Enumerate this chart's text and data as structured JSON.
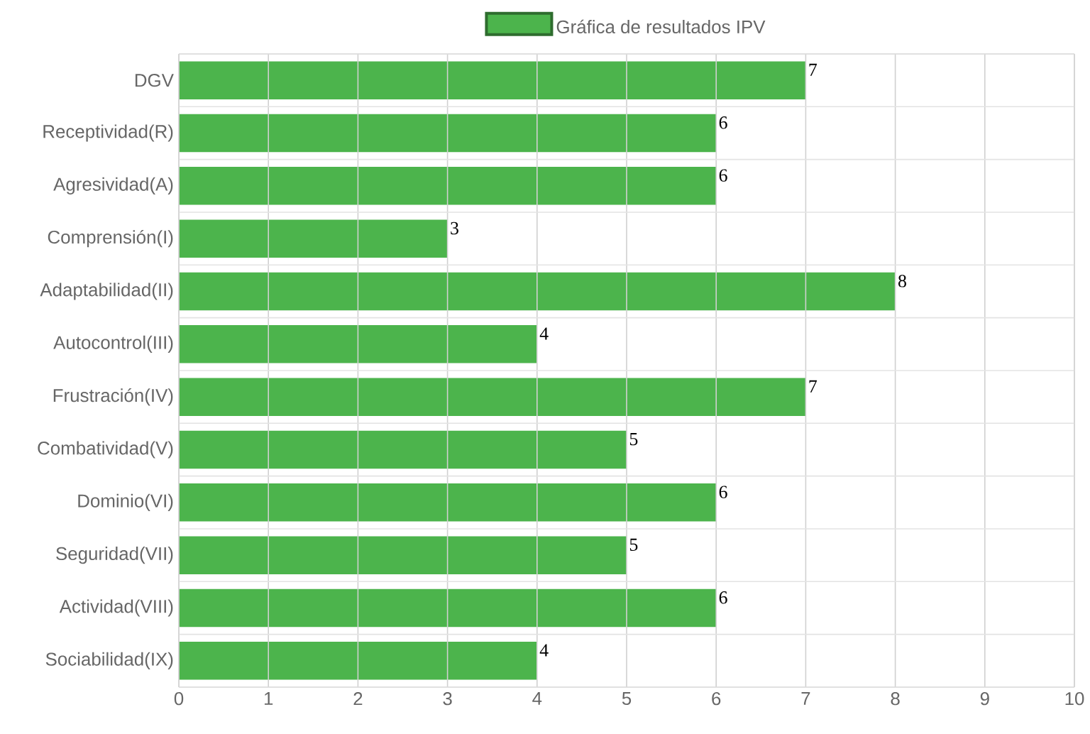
{
  "chart_data": {
    "type": "bar",
    "orientation": "horizontal",
    "categories": [
      "DGV",
      "Receptividad(R)",
      "Agresividad(A)",
      "Comprensión(I)",
      "Adaptabilidad(II)",
      "Autocontrol(III)",
      "Frustración(IV)",
      "Combatividad(V)",
      "Dominio(VI)",
      "Seguridad(VII)",
      "Actividad(VIII)",
      "Sociabilidad(IX)"
    ],
    "series": [
      {
        "name": "Gráfica de resultados IPV",
        "color": "#4cb44c",
        "values": [
          7,
          6,
          6,
          3,
          8,
          4,
          7,
          5,
          6,
          5,
          6,
          4
        ]
      }
    ],
    "xlim": [
      0,
      10
    ],
    "xticks": [
      0,
      1,
      2,
      3,
      4,
      5,
      6,
      7,
      8,
      9,
      10
    ],
    "grid": true,
    "legend": "top",
    "data_labels": true
  }
}
